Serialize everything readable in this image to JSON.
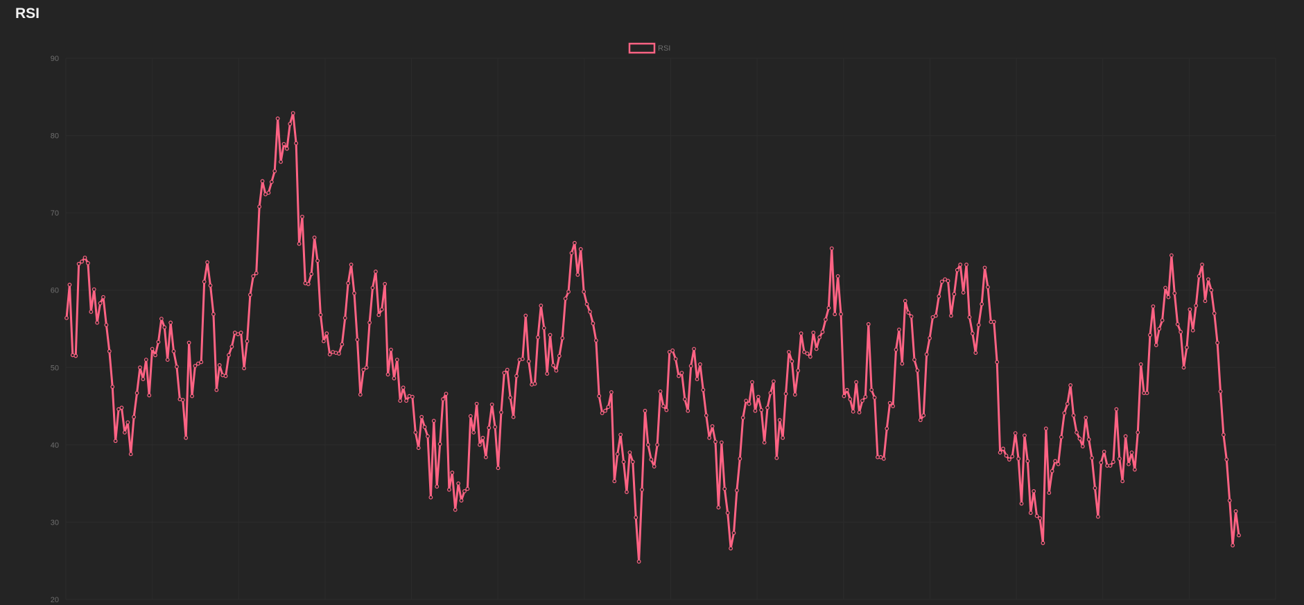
{
  "header": {
    "title": "RSI"
  },
  "colors": {
    "background": "#242424",
    "line": "#ff6384",
    "grid": "#2c2c2c",
    "tick": "#6e6e6e"
  },
  "chart_data": {
    "type": "line",
    "title": "",
    "xlabel": "",
    "ylabel": "",
    "ylim": [
      20,
      90
    ],
    "yticks": [
      20,
      30,
      40,
      50,
      60,
      70,
      80,
      90
    ],
    "grid": true,
    "legend_position": "top-center",
    "series": [
      {
        "name": "RSI",
        "color": "#ff6384",
        "values": [
          56.4,
          60.7,
          51.6,
          51.5,
          63.4,
          63.7,
          64.2,
          63.5,
          57.2,
          60.1,
          55.8,
          58.3,
          59.1,
          55.5,
          52.1,
          47.5,
          40.5,
          44.6,
          44.8,
          41.6,
          42.9,
          38.8,
          43.6,
          46.7,
          50.0,
          48.5,
          51.0,
          46.4,
          52.4,
          51.6,
          53.3,
          56.3,
          55.2,
          51.0,
          55.8,
          52.1,
          50.1,
          45.9,
          45.8,
          40.9,
          53.2,
          46.3,
          50.2,
          50.5,
          50.7,
          61.1,
          63.6,
          60.6,
          56.9,
          47.1,
          50.3,
          49.0,
          48.9,
          51.6,
          52.7,
          54.5,
          54.3,
          54.5,
          49.9,
          53.4,
          59.4,
          61.8,
          62.2,
          70.8,
          74.1,
          72.4,
          72.6,
          74.0,
          75.4,
          82.2,
          76.6,
          78.9,
          78.3,
          81.5,
          82.9,
          79.0,
          66.0,
          69.5,
          60.9,
          60.8,
          62.1,
          66.8,
          63.8,
          56.8,
          53.4,
          54.4,
          51.7,
          52.0,
          51.9,
          51.8,
          53.0,
          56.4,
          60.9,
          63.3,
          59.6,
          53.6,
          46.5,
          49.7,
          50.0,
          55.8,
          60.3,
          62.4,
          56.8,
          57.5,
          60.8,
          49.1,
          52.3,
          48.6,
          51.0,
          45.7,
          47.4,
          45.7,
          46.3,
          46.2,
          41.6,
          39.6,
          43.6,
          42.3,
          41.1,
          33.2,
          43.1,
          34.6,
          40.1,
          45.9,
          46.6,
          34.2,
          36.4,
          31.6,
          35.0,
          32.8,
          34.0,
          34.3,
          43.7,
          41.6,
          45.3,
          40.0,
          40.9,
          38.4,
          42.2,
          45.2,
          42.3,
          37.0,
          44.2,
          49.3,
          49.7,
          46.1,
          43.6,
          48.9,
          51.0,
          51.1,
          56.7,
          50.8,
          47.8,
          47.9,
          53.9,
          58.0,
          55.1,
          49.2,
          54.2,
          50.3,
          49.6,
          51.5,
          53.8,
          58.9,
          59.8,
          64.8,
          66.1,
          62.0,
          65.3,
          59.8,
          58.2,
          57.2,
          55.7,
          53.5,
          46.3,
          44.1,
          44.4,
          44.9,
          46.8,
          35.3,
          38.8,
          41.3,
          37.8,
          33.9,
          39.0,
          37.8,
          30.6,
          24.9,
          34.2,
          44.4,
          40.0,
          38.1,
          37.2,
          40.0,
          46.9,
          45.0,
          44.5,
          52.0,
          52.2,
          51.1,
          48.9,
          49.3,
          45.9,
          44.4,
          50.2,
          52.4,
          48.5,
          50.4,
          47.1,
          43.8,
          40.9,
          42.4,
          40.4,
          31.9,
          40.3,
          34.3,
          31.2,
          26.6,
          28.6,
          34.1,
          38.2,
          43.5,
          45.7,
          45.3,
          48.1,
          44.4,
          46.2,
          44.5,
          40.3,
          44.8,
          46.7,
          48.2,
          38.3,
          43.2,
          40.9,
          46.6,
          52.0,
          50.8,
          46.5,
          49.6,
          54.4,
          52.0,
          51.8,
          51.4,
          54.5,
          52.4,
          53.9,
          54.6,
          56.2,
          57.7,
          65.4,
          56.9,
          61.8,
          56.9,
          46.3,
          47.1,
          45.9,
          44.3,
          48.1,
          44.2,
          45.7,
          46.2,
          55.6,
          47.1,
          46.1,
          38.4,
          38.4,
          38.2,
          42.1,
          45.4,
          45.0,
          52.3,
          54.9,
          50.5,
          58.6,
          57.1,
          56.6,
          51.0,
          49.6,
          43.2,
          43.8,
          51.7,
          53.8,
          56.5,
          56.7,
          59.2,
          61.1,
          61.4,
          61.2,
          56.7,
          59.5,
          62.6,
          63.3,
          59.7,
          63.3,
          56.5,
          54.4,
          51.9,
          55.5,
          58.2,
          62.9,
          60.4,
          55.9,
          55.9,
          50.7,
          39.0,
          39.5,
          38.6,
          38.1,
          38.5,
          41.5,
          38.2,
          32.4,
          41.2,
          37.9,
          31.2,
          34.0,
          30.8,
          30.5,
          27.3,
          42.1,
          33.8,
          36.6,
          37.9,
          37.5,
          41.0,
          44.1,
          45.3,
          47.7,
          43.8,
          41.6,
          40.8,
          39.8,
          43.5,
          40.7,
          38.3,
          34.4,
          30.7,
          37.7,
          39.1,
          37.3,
          37.3,
          37.8,
          44.6,
          38.2,
          35.3,
          41.1,
          37.5,
          39.0,
          36.8,
          41.6,
          50.4,
          46.7,
          46.7,
          54.2,
          57.9,
          52.9,
          55.0,
          56.1,
          60.3,
          59.1,
          64.5,
          59.6,
          55.6,
          54.6,
          50.0,
          52.6,
          57.5,
          54.8,
          58.0,
          61.8,
          63.3,
          58.6,
          61.4,
          60.0,
          57.0,
          53.2,
          46.9,
          41.3,
          38.1,
          32.8,
          27.0,
          31.4,
          28.3
        ]
      }
    ]
  }
}
